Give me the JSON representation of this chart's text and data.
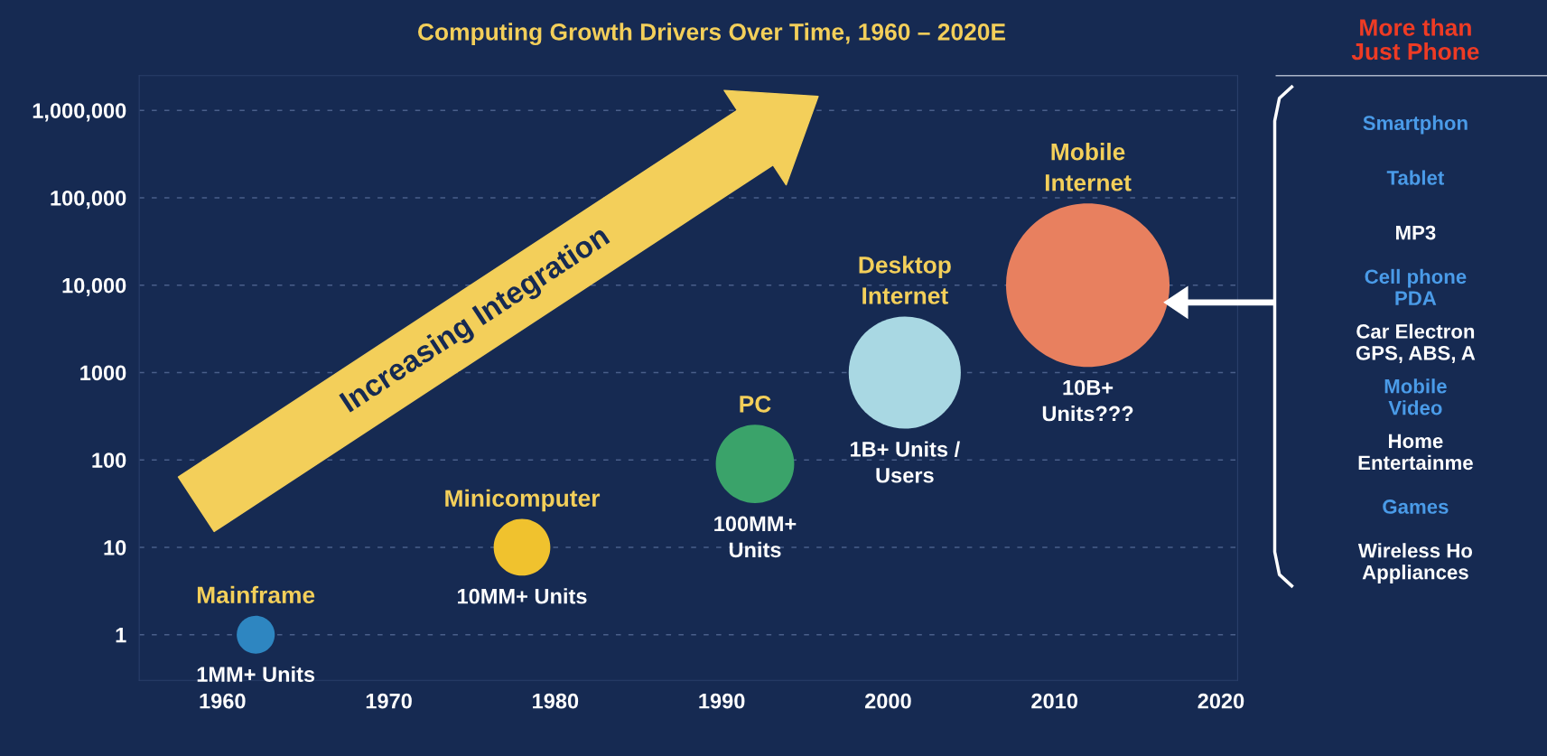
{
  "chart_data": {
    "type": "bubble",
    "title": "Computing Growth Drivers Over Time, 1960 – 2020E",
    "x": [
      1962,
      1978,
      1992,
      2001,
      2012
    ],
    "log": "y",
    "grid": "y",
    "legend": false,
    "xlim": [
      1955,
      2021
    ],
    "xticks": [
      1960,
      1970,
      1980,
      1990,
      2000,
      2010,
      2020
    ],
    "ylim": [
      0.3,
      2500000
    ],
    "yticks": [
      1,
      10,
      100,
      1000,
      {
        "value": 10000,
        "label": "10,000"
      },
      {
        "value": 100000,
        "label": "100,000"
      },
      {
        "value": 1000000,
        "label": "1,000,000"
      }
    ],
    "series": [
      {
        "values": [
          1,
          10,
          90,
          1000,
          10000
        ],
        "sizes": [
          0.054,
          0.12,
          0.23,
          0.47,
          1
        ],
        "colors": [
          "#2e86c1",
          "#f0c22e",
          "#3aa36a",
          "#a9d8e3",
          "#e8805f"
        ]
      }
    ],
    "annotations": [
      "Mainframe",
      "Minicomputer",
      "PC",
      "Desktop\nInternet",
      "Mobile\nInternet",
      "1MM+ Units",
      "10MM+ Units",
      "100MM+\nUnits",
      "1B+ Units /\nUsers",
      "10B+\nUnits???",
      "Increasing Integration",
      "More than\nJust Phone",
      "Smartphon",
      "Tablet",
      "MP3",
      "Cell phone\nPDA",
      "Car Electron\nGPS, ABS, A",
      "Mobile\nVideo",
      "Home\nEntertainme",
      "Games",
      "Wireless Ho\nAppliances"
    ]
  }
}
